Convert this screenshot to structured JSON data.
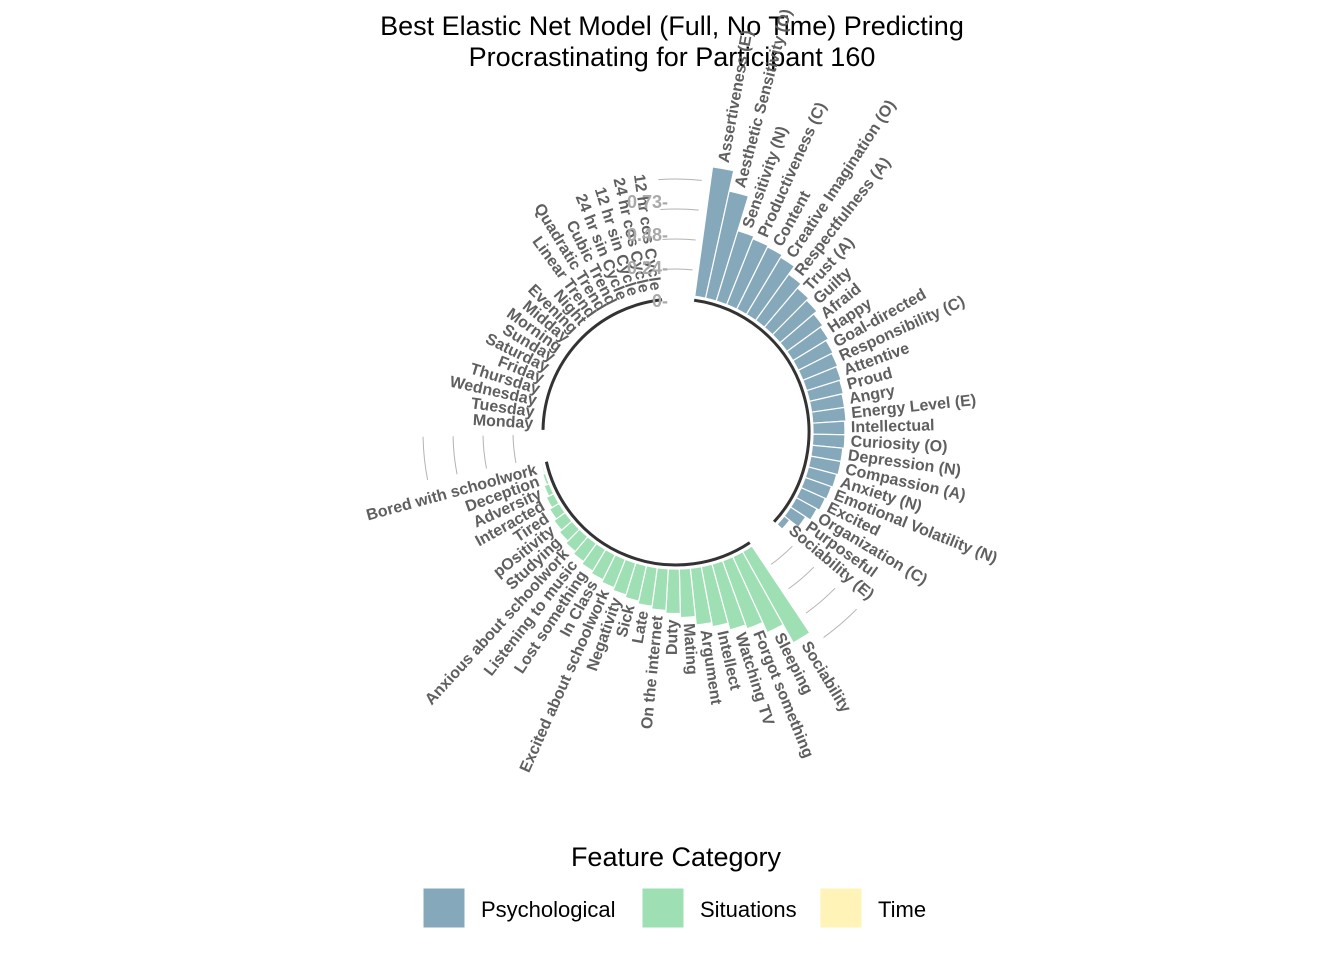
{
  "chart_data": {
    "type": "bar",
    "coord": "polar",
    "title_lines": [
      "Best Elastic Net Model (Full, No Time) Predicting",
      "Procrastinating for Participant 160"
    ],
    "radial_ticks": [
      "0-",
      "0.24-",
      "0.48-",
      "0.73-"
    ],
    "radial_tick_values": [
      0,
      0.24,
      0.48,
      0.73
    ],
    "legend": {
      "title": "Feature Category",
      "position": "bottom",
      "entries": [
        {
          "name": "Psychological",
          "color": "#85a8ba"
        },
        {
          "name": "Situations",
          "color": "#9ee0b4"
        },
        {
          "name": "Time",
          "color": "#fff3b8"
        }
      ]
    },
    "groups": [
      {
        "name": "Psychological",
        "color": "#85a8ba",
        "features": [
          {
            "label": "Assertiveness (E)",
            "value": 0.94
          },
          {
            "label": "Aesthetic Sensitivity (O)",
            "value": 0.79
          },
          {
            "label": "Sensitivity (N)",
            "value": 0.53
          },
          {
            "label": "Productiveness (C)",
            "value": 0.51
          },
          {
            "label": "Content",
            "value": 0.5
          },
          {
            "label": "Creative Imagination (O)",
            "value": 0.48
          },
          {
            "label": "Respectfulness (A)",
            "value": 0.41
          },
          {
            "label": "Trust (A)",
            "value": 0.37
          },
          {
            "label": "Guilty",
            "value": 0.35
          },
          {
            "label": "Afraid",
            "value": 0.32
          },
          {
            "label": "Happy",
            "value": 0.3
          },
          {
            "label": "Goal-directed",
            "value": 0.28
          },
          {
            "label": "Responsibility (C)",
            "value": 0.27
          },
          {
            "label": "Attentive",
            "value": 0.26
          },
          {
            "label": "Proud",
            "value": 0.25
          },
          {
            "label": "Angry",
            "value": 0.24
          },
          {
            "label": "Energy Level (E)",
            "value": 0.24
          },
          {
            "label": "Intellectual",
            "value": 0.23
          },
          {
            "label": "Curiosity (O)",
            "value": 0.23
          },
          {
            "label": "Depression (N)",
            "value": 0.22
          },
          {
            "label": "Compassion (A)",
            "value": 0.22
          },
          {
            "label": "Anxiety (N)",
            "value": 0.21
          },
          {
            "label": "Emotional Volatility (N)",
            "value": 0.2
          },
          {
            "label": "Excited",
            "value": 0.19
          },
          {
            "label": "Organization (C)",
            "value": 0.17
          },
          {
            "label": "Purposeful",
            "value": 0.13
          },
          {
            "label": "Sociability (E)",
            "value": 0.05
          }
        ]
      },
      {
        "name": "Situations",
        "color": "#9ee0b4",
        "features": [
          {
            "label": "Sociability",
            "value": 0.75
          },
          {
            "label": "Sleeping",
            "value": 0.6
          },
          {
            "label": "Forgot something",
            "value": 0.52
          },
          {
            "label": "Watching TV",
            "value": 0.49
          },
          {
            "label": "Intellect",
            "value": 0.44
          },
          {
            "label": "Argument",
            "value": 0.41
          },
          {
            "label": "Mating",
            "value": 0.35
          },
          {
            "label": "Duty",
            "value": 0.32
          },
          {
            "label": "On the internet",
            "value": 0.3
          },
          {
            "label": "Late",
            "value": 0.28
          },
          {
            "label": "Sick",
            "value": 0.26
          },
          {
            "label": "Negativity",
            "value": 0.24
          },
          {
            "label": "Excited about schoolwork",
            "value": 0.22
          },
          {
            "label": "In Class",
            "value": 0.2
          },
          {
            "label": "Lost something",
            "value": 0.18
          },
          {
            "label": "Listening to music",
            "value": 0.16
          },
          {
            "label": "Anxious about schoolwork",
            "value": 0.14
          },
          {
            "label": "Studying",
            "value": 0.12
          },
          {
            "label": "pOsitivity",
            "value": 0.1
          },
          {
            "label": "Tired",
            "value": 0.08
          },
          {
            "label": "Interacted",
            "value": 0.06
          },
          {
            "label": "Adversity",
            "value": 0.04
          },
          {
            "label": "Deception",
            "value": 0.02
          },
          {
            "label": "Bored with schoolwork",
            "value": 0.01
          }
        ]
      },
      {
        "name": "Time",
        "color": "#fff3b8",
        "features": [
          {
            "label": "Monday",
            "value": 0
          },
          {
            "label": "Tuesday",
            "value": 0
          },
          {
            "label": "Wednesday",
            "value": 0
          },
          {
            "label": "Thursday",
            "value": 0
          },
          {
            "label": "Friday",
            "value": 0
          },
          {
            "label": "Saturday",
            "value": 0
          },
          {
            "label": "Sunday",
            "value": 0
          },
          {
            "label": "Morning",
            "value": 0
          },
          {
            "label": "Midday",
            "value": 0
          },
          {
            "label": "Evening",
            "value": 0
          },
          {
            "label": "Night",
            "value": 0
          },
          {
            "label": "Linear Trend",
            "value": 0
          },
          {
            "label": "Quadratic Trend",
            "value": 0
          },
          {
            "label": "Cubic Trend",
            "value": 0
          },
          {
            "label": "24 hr sin Cycle",
            "value": 0
          },
          {
            "label": "12 hr sin Cycle",
            "value": 0
          },
          {
            "label": "24 hr cos Cycle",
            "value": 0
          },
          {
            "label": "12 hr cos Cycle",
            "value": 0
          }
        ]
      }
    ]
  }
}
